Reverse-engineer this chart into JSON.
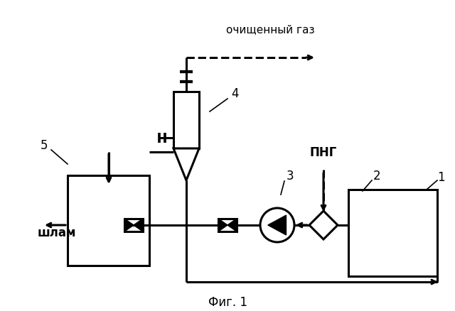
{
  "title": "Фиг. 1",
  "label_cleaned_gas": "очищенный газ",
  "label_png": "ПНГ",
  "label_shlam": "шлам",
  "bg_color": "#ffffff",
  "line_color": "#000000",
  "fig_width": 6.4,
  "fig_height": 4.39,
  "dpi": 100
}
